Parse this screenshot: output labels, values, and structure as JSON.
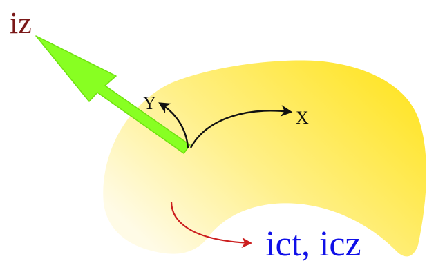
{
  "labels": {
    "iz": "iz",
    "y_axis": "Y",
    "x_axis": "X",
    "ict_icz": "ict, icz"
  },
  "colors": {
    "background": "#ffffff",
    "shape_bright": "#ffe52c",
    "shape_mid": "#fff08a",
    "shape_light": "#fffbe6",
    "arrow_green": "#88ff22",
    "arrow_green_dark": "#6fe010",
    "axis_arrow": "#111111",
    "curve_arrow": "#cc1f1f",
    "iz_text": "#7a1818",
    "axis_text": "#111111",
    "ict_text": "#1010e8"
  },
  "icons": {
    "iz_vector": "green-arrow-icon",
    "y_axis": "curved-arrow-icon",
    "x_axis": "curved-arrow-icon",
    "ict_direction": "curved-arrow-icon"
  }
}
